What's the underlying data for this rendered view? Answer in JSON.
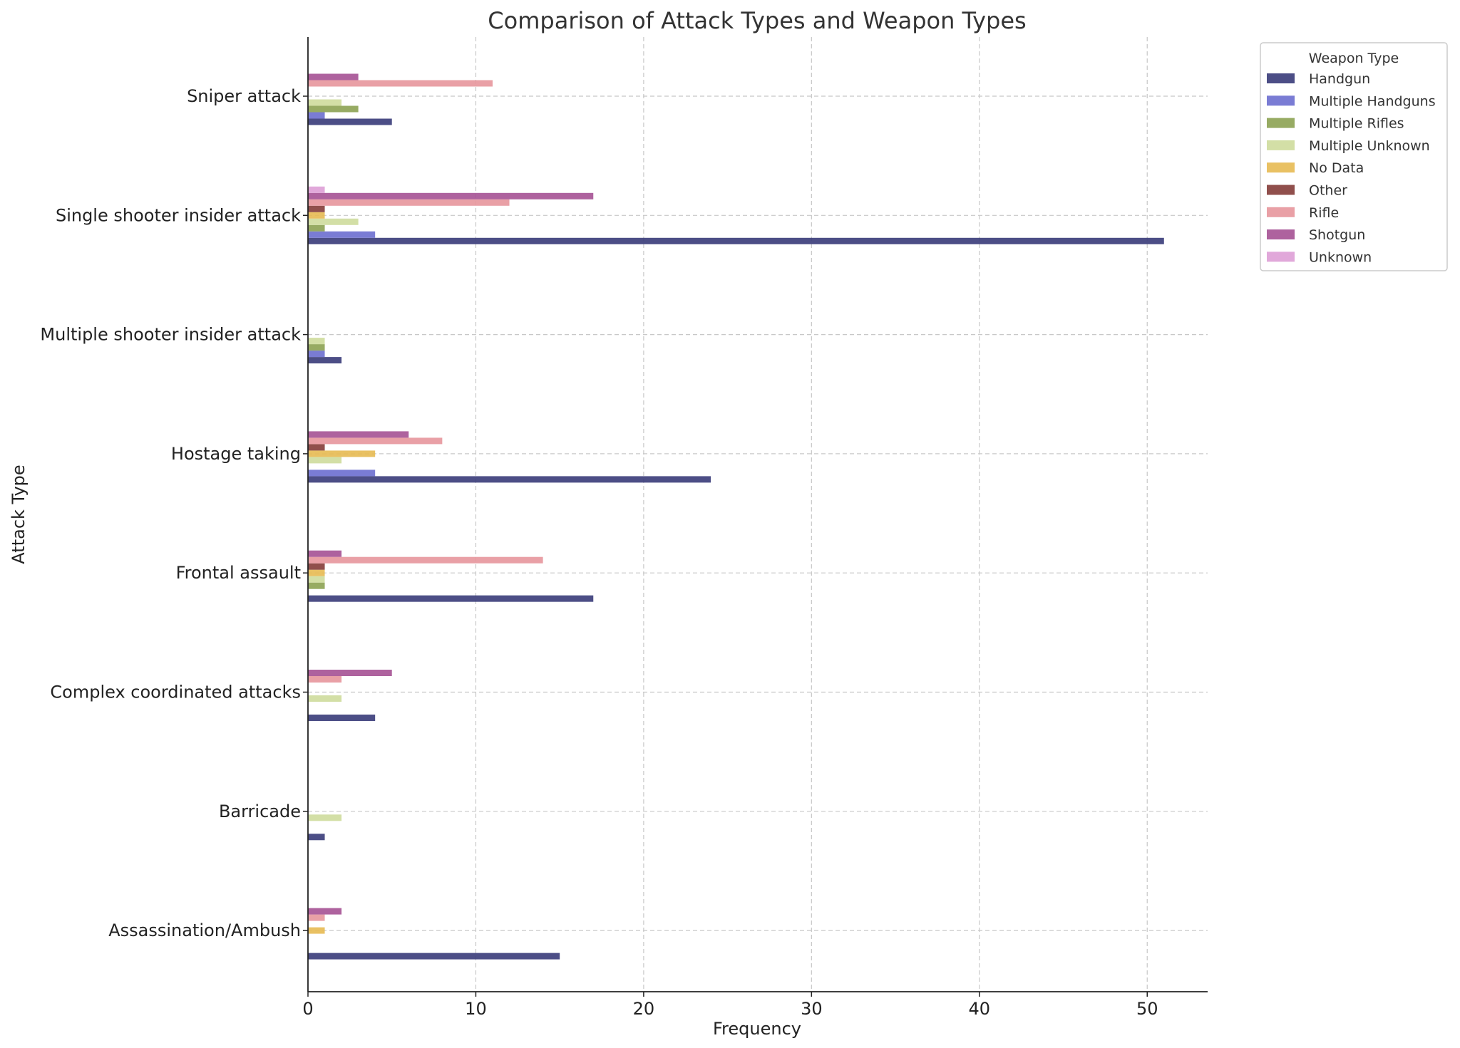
{
  "chart_data": {
    "type": "bar",
    "orientation": "horizontal",
    "title": "Comparison of Attack Types and Weapon Types",
    "xlabel": "Frequency",
    "ylabel": "Attack Type",
    "xlim": [
      0,
      53.6
    ],
    "xticks": [
      0,
      10,
      20,
      30,
      40,
      50
    ],
    "grid": true,
    "legend_title": "Weapon Type",
    "legend_position": "outside-top-right",
    "categories": [
      "Sniper attack",
      "Single shooter insider attack",
      "Multiple shooter insider attack",
      "Hostage taking",
      "Frontal assault",
      "Complex coordinated attacks",
      "Barricade",
      "Assassination/Ambush"
    ],
    "series": [
      {
        "name": "Handgun",
        "color": "#393b79",
        "values": [
          5,
          51,
          2,
          24,
          17,
          4,
          1,
          15
        ]
      },
      {
        "name": "Multiple Handguns",
        "color": "#6b6ecf",
        "values": [
          1,
          4,
          1,
          4,
          0,
          0,
          0,
          0
        ]
      },
      {
        "name": "Multiple Rifles",
        "color": "#8ca252",
        "values": [
          3,
          1,
          1,
          0,
          1,
          0,
          0,
          0
        ]
      },
      {
        "name": "Multiple Unknown",
        "color": "#cedb9c",
        "values": [
          2,
          3,
          1,
          2,
          1,
          2,
          2,
          0
        ]
      },
      {
        "name": "No Data",
        "color": "#e7ba52",
        "values": [
          0,
          1,
          0,
          4,
          1,
          0,
          0,
          1
        ]
      },
      {
        "name": "Other",
        "color": "#843c39",
        "values": [
          0,
          1,
          0,
          1,
          1,
          0,
          0,
          0
        ]
      },
      {
        "name": "Rifle",
        "color": "#e7969c",
        "values": [
          11,
          12,
          0,
          8,
          14,
          2,
          0,
          1
        ]
      },
      {
        "name": "Shotgun",
        "color": "#a55194",
        "values": [
          3,
          17,
          0,
          6,
          2,
          5,
          0,
          2
        ]
      },
      {
        "name": "Unknown",
        "color": "#de9ed6",
        "values": [
          0,
          1,
          0,
          0,
          0,
          0,
          0,
          0
        ]
      }
    ]
  }
}
